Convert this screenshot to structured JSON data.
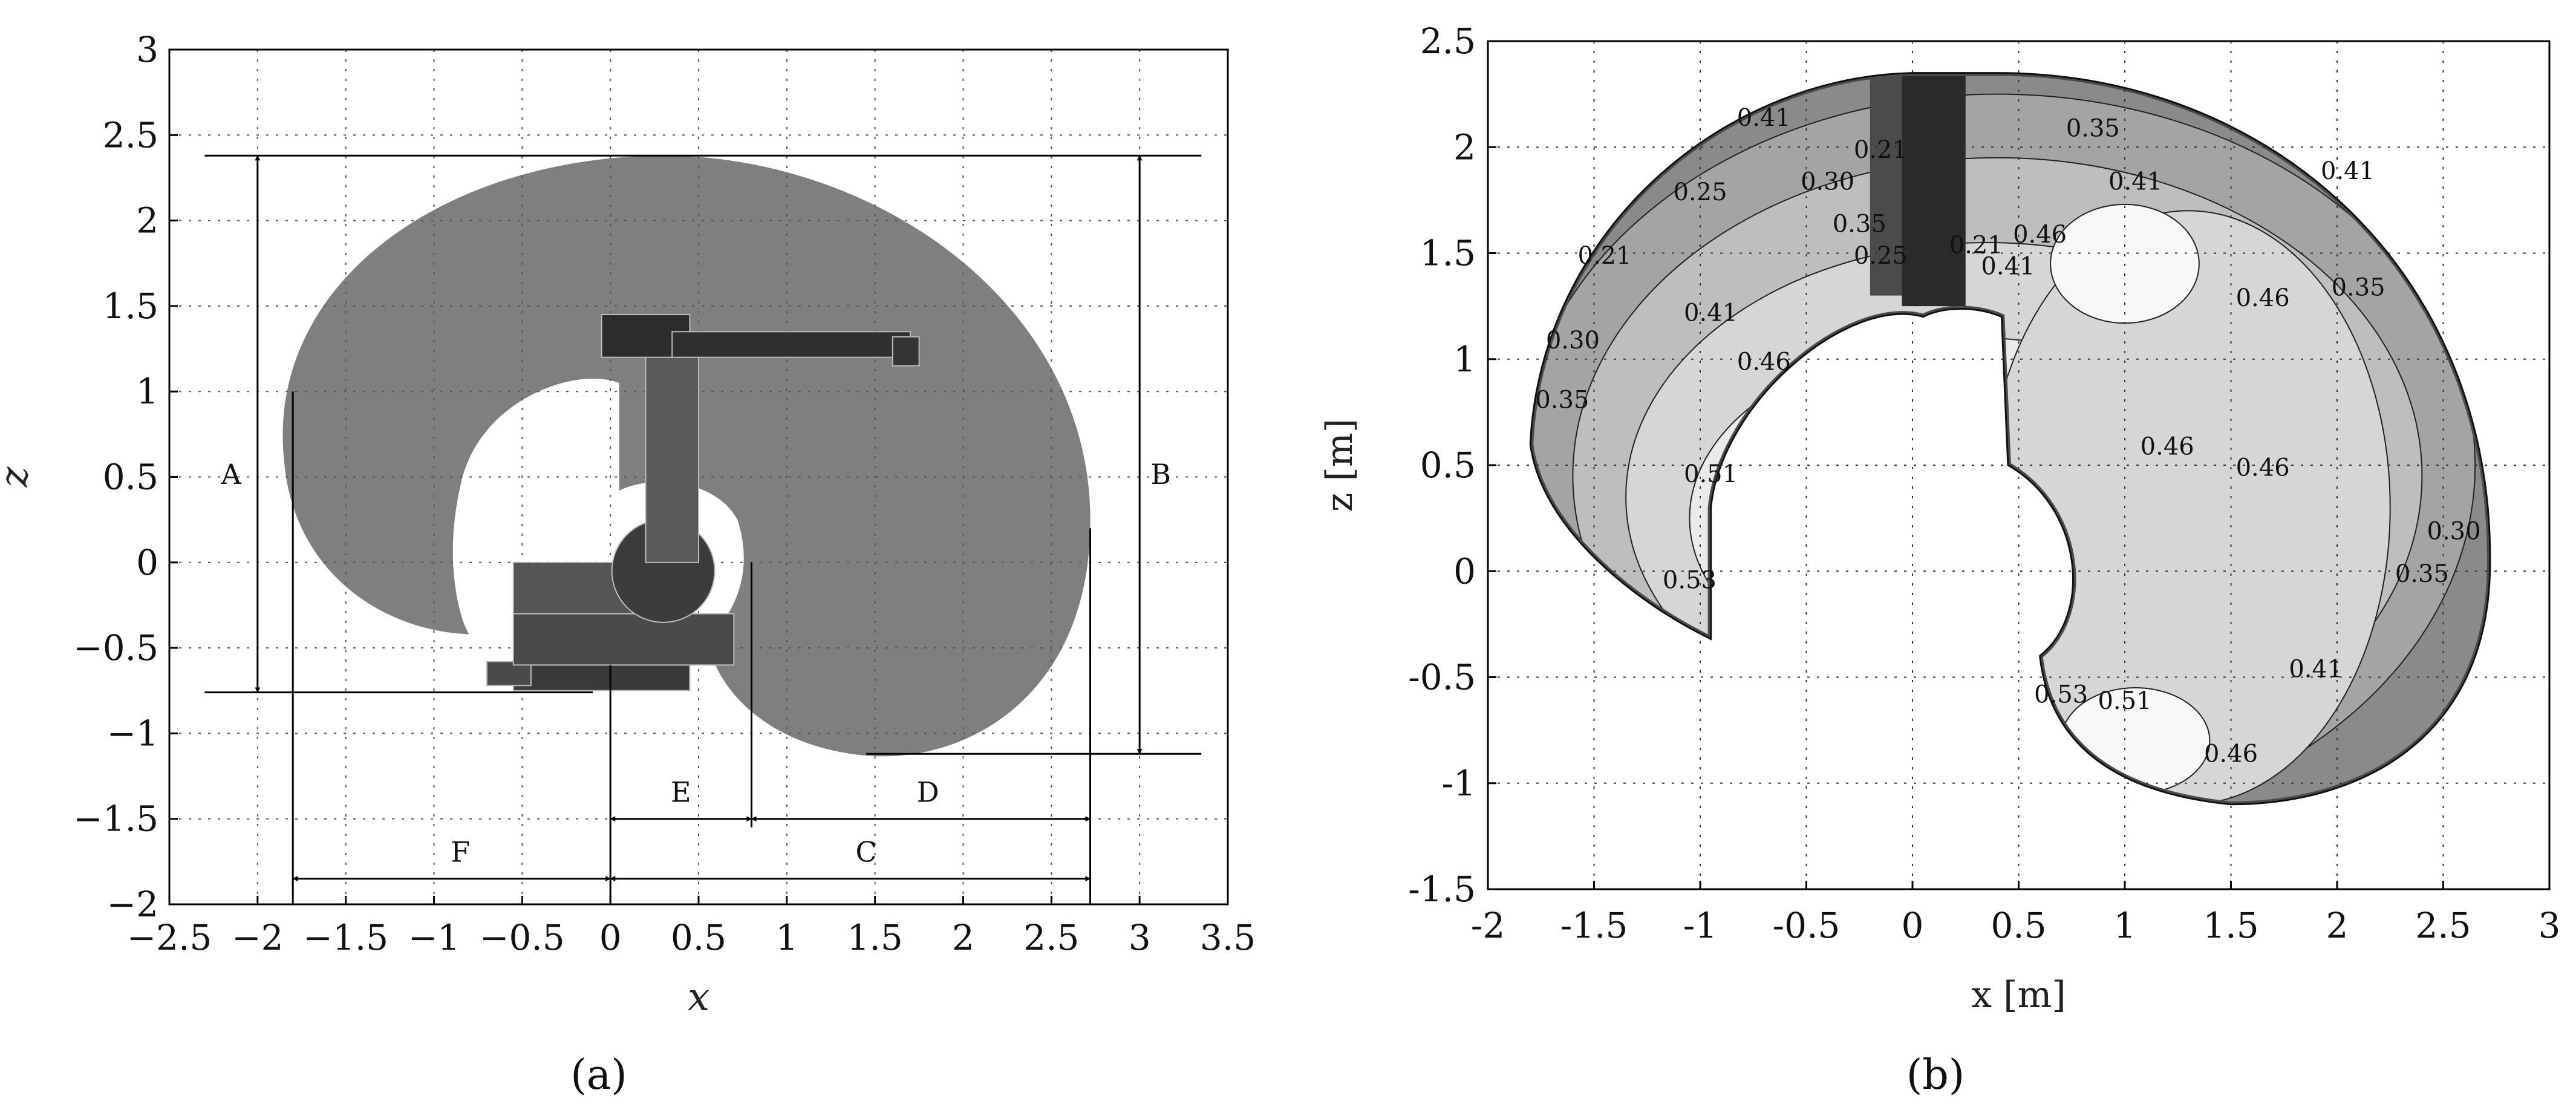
{
  "chart_data": [
    {
      "type": "area",
      "panel_label": "(a)",
      "xlabel": "x",
      "ylabel": "z",
      "xlim": [
        -2.5,
        3.5
      ],
      "ylim": [
        -2,
        3
      ],
      "xticks": [
        "−2.5",
        "−2",
        "−1.5",
        "−1",
        "−0.5",
        "0",
        "0.5",
        "1",
        "1.5",
        "2",
        "2.5",
        "3",
        "3.5"
      ],
      "yticks": [
        "−2",
        "−1.5",
        "−1",
        "−0.5",
        "0",
        "0.5",
        "1",
        "1.5",
        "2",
        "2.5",
        "3"
      ],
      "grid": true,
      "workspace_color": "#7f7f7f",
      "dimension_labels": [
        "A",
        "B",
        "C",
        "D",
        "E",
        "F"
      ],
      "dimensions": {
        "A": {
          "x": -2.0,
          "z_from": -0.76,
          "z_to": 2.38
        },
        "B": {
          "x": 3.0,
          "z_from": -1.12,
          "z_to": 2.38
        },
        "C": {
          "z": -1.85,
          "x_from": 0.0,
          "x_to": 2.72
        },
        "D": {
          "z": -1.5,
          "x_from": 0.8,
          "x_to": 2.72
        },
        "E": {
          "z": -1.5,
          "x_from": 0.0,
          "x_to": 0.8
        },
        "F": {
          "z": -1.85,
          "x_from": -1.8,
          "x_to": 0.0
        }
      }
    },
    {
      "type": "heatmap",
      "panel_label": "(b)",
      "xlabel": "x [m]",
      "ylabel": "z [m]",
      "xlim": [
        -2,
        3
      ],
      "ylim": [
        -1.5,
        2.5
      ],
      "xticks": [
        "-2",
        "-1.5",
        "-1",
        "-0.5",
        "0",
        "0.5",
        "1",
        "1.5",
        "2",
        "2.5",
        "3"
      ],
      "yticks": [
        "-1.5",
        "-1",
        "-0.5",
        "0",
        "0.5",
        "1",
        "1.5",
        "2",
        "2.5"
      ],
      "grid": true,
      "contour_levels": [
        "0.21",
        "0.25",
        "0.30",
        "0.35",
        "0.41",
        "0.46",
        "0.51",
        "0.53"
      ],
      "contour_labels": [
        {
          "text": "0.41",
          "x": -0.7,
          "z": 2.1
        },
        {
          "text": "0.21",
          "x": -0.15,
          "z": 1.95
        },
        {
          "text": "0.30",
          "x": -0.4,
          "z": 1.8
        },
        {
          "text": "0.25",
          "x": -1.0,
          "z": 1.75
        },
        {
          "text": "0.35",
          "x": -0.25,
          "z": 1.6
        },
        {
          "text": "0.25",
          "x": -0.15,
          "z": 1.45
        },
        {
          "text": "0.21",
          "x": 0.3,
          "z": 1.5
        },
        {
          "text": "0.21",
          "x": -1.45,
          "z": 1.45
        },
        {
          "text": "0.41",
          "x": -0.95,
          "z": 1.18
        },
        {
          "text": "0.30",
          "x": -1.6,
          "z": 1.05
        },
        {
          "text": "0.46",
          "x": -0.7,
          "z": 0.95
        },
        {
          "text": "0.35",
          "x": -1.65,
          "z": 0.77
        },
        {
          "text": "0.51",
          "x": -0.95,
          "z": 0.42
        },
        {
          "text": "0.53",
          "x": -1.05,
          "z": -0.08
        },
        {
          "text": "0.35",
          "x": 0.85,
          "z": 2.05
        },
        {
          "text": "0.41",
          "x": 1.05,
          "z": 1.8
        },
        {
          "text": "0.46",
          "x": 0.6,
          "z": 1.55
        },
        {
          "text": "0.41",
          "x": 0.45,
          "z": 1.4
        },
        {
          "text": "0.46",
          "x": 1.65,
          "z": 1.25
        },
        {
          "text": "0.35",
          "x": 2.1,
          "z": 1.3
        },
        {
          "text": "0.41",
          "x": 2.05,
          "z": 1.85
        },
        {
          "text": "0.46",
          "x": 1.2,
          "z": 0.55
        },
        {
          "text": "0.46",
          "x": 1.65,
          "z": 0.45
        },
        {
          "text": "0.30",
          "x": 2.55,
          "z": 0.15
        },
        {
          "text": "0.35",
          "x": 2.4,
          "z": -0.05
        },
        {
          "text": "0.41",
          "x": 1.9,
          "z": -0.5
        },
        {
          "text": "0.53",
          "x": 0.7,
          "z": -0.62
        },
        {
          "text": "0.51",
          "x": 1.0,
          "z": -0.65
        },
        {
          "text": "0.46",
          "x": 1.5,
          "z": -0.9
        }
      ],
      "gray_shades": [
        "#2a2a2a",
        "#4b4b4b",
        "#6e6e6e",
        "#8a8a8a",
        "#a4a4a4",
        "#bebebe",
        "#d6d6d6",
        "#ebebeb",
        "#f8f8f8"
      ]
    }
  ]
}
